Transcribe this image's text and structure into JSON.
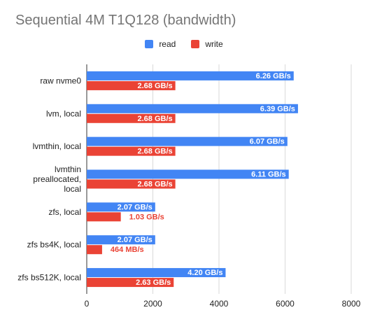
{
  "chart_data": {
    "type": "bar",
    "orientation": "horizontal",
    "title": "Sequential 4M T1Q128 (bandwidth)",
    "xlabel": "",
    "ylabel": "",
    "categories": [
      [
        "raw nvme0"
      ],
      [
        "lvm, local"
      ],
      [
        "lvmthin, local"
      ],
      [
        "lvmthin",
        "preallocated,",
        "local"
      ],
      [
        "zfs, local"
      ],
      [
        "zfs bs4K, local"
      ],
      [
        "zfs bs512K, local"
      ]
    ],
    "series": [
      {
        "name": "read",
        "color": "#4285f4",
        "values": [
          6260,
          6390,
          6070,
          6110,
          2070,
          2070,
          4200
        ],
        "labels": [
          "6.26 GB/s",
          "6.39 GB/s",
          "6.07 GB/s",
          "6.11 GB/s",
          "2.07 GB/s",
          "2.07 GB/s",
          "4.20 GB/s"
        ]
      },
      {
        "name": "write",
        "color": "#ea4335",
        "values": [
          2680,
          2680,
          2680,
          2680,
          1030,
          464,
          2630
        ],
        "labels": [
          "2.68 GB/s",
          "2.68 GB/s",
          "2.68 GB/s",
          "2.68 GB/s",
          "1.03 GB/s",
          "464  MB/s",
          "2.63 GB/s"
        ]
      }
    ],
    "xlim": [
      0,
      8000
    ],
    "xticks": [
      "0",
      "2000",
      "4000",
      "6000",
      "8000"
    ],
    "grid": true,
    "legend_position": "top-center"
  }
}
